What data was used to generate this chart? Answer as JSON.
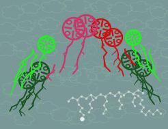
{
  "background_color": "#7a9898",
  "figsize": [
    2.46,
    1.89
  ],
  "dpi": 100,
  "colors": {
    "pink": "#cc3366",
    "red": "#cc1111",
    "bright_green": "#22ee22",
    "dark_green": "#1a5520",
    "loop_green": "#8ab8a0",
    "white_chain": "#c8d4cc"
  }
}
